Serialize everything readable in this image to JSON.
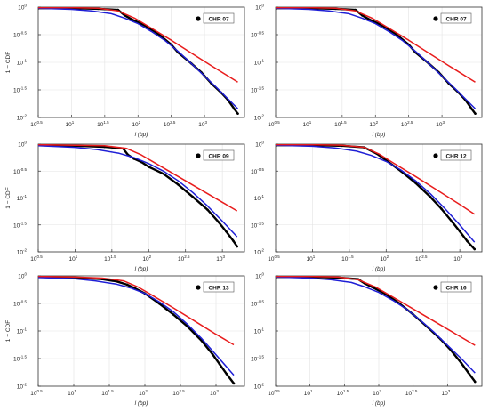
{
  "chart_data": [
    {
      "type": "line",
      "scale": "log-log",
      "ylabel": "1 − CDF",
      "xlabel": "l (bp)",
      "xlim": [
        0.5,
        3.6
      ],
      "ylim": [
        -2.0,
        0.0
      ],
      "grid": true,
      "legend_position": "top-right",
      "x_ticks": [
        {
          "v": 0.5,
          "label": "10",
          "exp": "0.5"
        },
        {
          "v": 1,
          "label": "10",
          "exp": "1"
        },
        {
          "v": 1.5,
          "label": "10",
          "exp": "1.5"
        },
        {
          "v": 2,
          "label": "10",
          "exp": "2"
        },
        {
          "v": 2.5,
          "label": "10",
          "exp": "2.5"
        },
        {
          "v": 3,
          "label": "10",
          "exp": "3"
        }
      ],
      "y_ticks": [
        {
          "v": 0,
          "label": "10",
          "exp": "0"
        },
        {
          "v": -0.5,
          "label": "10",
          "exp": "-0.5"
        },
        {
          "v": -1,
          "label": "10",
          "exp": "-1"
        },
        {
          "v": -1.5,
          "label": "10",
          "exp": "-1.5"
        },
        {
          "v": -2,
          "label": "10",
          "exp": "-2"
        }
      ],
      "series": [
        {
          "name": "CHR 07",
          "color": "#000000",
          "style": "markers",
          "x": [
            0.5,
            1.0,
            1.4,
            1.7,
            1.8,
            1.9,
            2.1,
            2.3,
            2.5,
            2.6,
            2.8,
            2.95,
            3.1,
            3.25,
            3.35,
            3.45,
            3.5
          ],
          "y": [
            -0.02,
            -0.02,
            -0.03,
            -0.05,
            -0.15,
            -0.22,
            -0.33,
            -0.48,
            -0.68,
            -0.82,
            -1.02,
            -1.18,
            -1.38,
            -1.55,
            -1.68,
            -1.85,
            -1.93
          ]
        },
        {
          "name": "",
          "color": "#1f1fd6",
          "style": "line",
          "x": [
            0.5,
            1.0,
            1.3,
            1.6,
            1.8,
            2.0,
            2.2,
            2.4,
            2.6,
            2.8,
            3.0,
            3.2,
            3.4,
            3.5
          ],
          "y": [
            -0.02,
            -0.04,
            -0.07,
            -0.12,
            -0.2,
            -0.3,
            -0.44,
            -0.6,
            -0.8,
            -1.02,
            -1.25,
            -1.48,
            -1.72,
            -1.84
          ]
        },
        {
          "name": "",
          "color": "#e81c1c",
          "style": "line",
          "x": [
            0.5,
            1.0,
            1.4,
            1.7,
            1.95,
            2.2,
            2.5,
            2.8,
            3.1,
            3.5
          ],
          "y": [
            -0.01,
            -0.01,
            -0.02,
            -0.07,
            -0.2,
            -0.38,
            -0.6,
            -0.83,
            -1.06,
            -1.36
          ]
        }
      ]
    },
    {
      "type": "line",
      "scale": "log-log",
      "ylabel": "",
      "xlabel": "l (bp)",
      "xlim": [
        0.5,
        3.6
      ],
      "ylim": [
        -2.0,
        0.0
      ],
      "grid": true,
      "legend_position": "top-right",
      "x_ticks": [
        {
          "v": 0.5,
          "label": "10",
          "exp": "0.5"
        },
        {
          "v": 1,
          "label": "10",
          "exp": "1"
        },
        {
          "v": 1.5,
          "label": "10",
          "exp": "1.5"
        },
        {
          "v": 2,
          "label": "10",
          "exp": "2"
        },
        {
          "v": 2.5,
          "label": "10",
          "exp": "2.5"
        },
        {
          "v": 3,
          "label": "10",
          "exp": "3"
        }
      ],
      "y_ticks": [
        {
          "v": 0,
          "label": "10",
          "exp": "0"
        },
        {
          "v": -0.5,
          "label": "10",
          "exp": "-0.5"
        },
        {
          "v": -1,
          "label": "10",
          "exp": "-1"
        },
        {
          "v": -1.5,
          "label": "10",
          "exp": "-1.5"
        },
        {
          "v": -2,
          "label": "10",
          "exp": "-2"
        }
      ],
      "series": [
        {
          "name": "CHR 07",
          "color": "#000000",
          "style": "markers",
          "x": [
            0.5,
            1.0,
            1.4,
            1.7,
            1.8,
            1.9,
            2.1,
            2.3,
            2.5,
            2.6,
            2.8,
            2.95,
            3.1,
            3.25,
            3.35,
            3.45,
            3.5
          ],
          "y": [
            -0.02,
            -0.02,
            -0.03,
            -0.05,
            -0.15,
            -0.22,
            -0.33,
            -0.48,
            -0.68,
            -0.82,
            -1.02,
            -1.18,
            -1.38,
            -1.55,
            -1.68,
            -1.85,
            -1.93
          ]
        },
        {
          "name": "",
          "color": "#1f1fd6",
          "style": "line",
          "x": [
            0.5,
            1.0,
            1.3,
            1.6,
            1.8,
            2.0,
            2.2,
            2.4,
            2.6,
            2.8,
            3.0,
            3.2,
            3.4,
            3.5
          ],
          "y": [
            -0.02,
            -0.04,
            -0.07,
            -0.12,
            -0.2,
            -0.3,
            -0.44,
            -0.6,
            -0.8,
            -1.02,
            -1.25,
            -1.48,
            -1.72,
            -1.84
          ]
        },
        {
          "name": "",
          "color": "#e81c1c",
          "style": "line",
          "x": [
            0.5,
            1.0,
            1.4,
            1.7,
            1.95,
            2.2,
            2.5,
            2.8,
            3.1,
            3.5
          ],
          "y": [
            -0.01,
            -0.01,
            -0.02,
            -0.07,
            -0.2,
            -0.38,
            -0.6,
            -0.83,
            -1.06,
            -1.36
          ]
        }
      ]
    },
    {
      "type": "line",
      "scale": "log-log",
      "ylabel": "1 − CDF",
      "xlabel": "l (bp)",
      "xlim": [
        0.5,
        3.3
      ],
      "ylim": [
        -2.0,
        0.0
      ],
      "grid": true,
      "legend_position": "top-right",
      "x_ticks": [
        {
          "v": 0.5,
          "label": "10",
          "exp": "0.5"
        },
        {
          "v": 1,
          "label": "10",
          "exp": "1"
        },
        {
          "v": 1.5,
          "label": "10",
          "exp": "1.5"
        },
        {
          "v": 2,
          "label": "10",
          "exp": "2"
        },
        {
          "v": 2.5,
          "label": "10",
          "exp": "2.5"
        },
        {
          "v": 3,
          "label": "10",
          "exp": "3"
        }
      ],
      "y_ticks": [
        {
          "v": 0,
          "label": "10",
          "exp": "0"
        },
        {
          "v": -0.5,
          "label": "10",
          "exp": "-0.5"
        },
        {
          "v": -1,
          "label": "10",
          "exp": "-1"
        },
        {
          "v": -1.5,
          "label": "10",
          "exp": "-1.5"
        },
        {
          "v": -2,
          "label": "10",
          "exp": "-2"
        }
      ],
      "series": [
        {
          "name": "CHR 09",
          "color": "#000000",
          "style": "markers",
          "x": [
            0.5,
            1.0,
            1.4,
            1.65,
            1.72,
            1.8,
            1.9,
            2.0,
            2.2,
            2.4,
            2.6,
            2.8,
            2.95,
            3.05,
            3.15,
            3.2
          ],
          "y": [
            -0.02,
            -0.03,
            -0.05,
            -0.08,
            -0.2,
            -0.27,
            -0.33,
            -0.42,
            -0.55,
            -0.75,
            -0.98,
            -1.22,
            -1.45,
            -1.62,
            -1.8,
            -1.9
          ]
        },
        {
          "name": "",
          "color": "#1f1fd6",
          "style": "line",
          "x": [
            0.5,
            1.0,
            1.3,
            1.6,
            1.8,
            2.0,
            2.2,
            2.4,
            2.6,
            2.8,
            3.0,
            3.2
          ],
          "y": [
            -0.03,
            -0.06,
            -0.1,
            -0.17,
            -0.25,
            -0.36,
            -0.5,
            -0.68,
            -0.9,
            -1.15,
            -1.43,
            -1.72
          ]
        },
        {
          "name": "",
          "color": "#e81c1c",
          "style": "line",
          "x": [
            0.5,
            1.0,
            1.4,
            1.7,
            1.9,
            2.1,
            2.4,
            2.7,
            3.0,
            3.2
          ],
          "y": [
            -0.01,
            -0.02,
            -0.03,
            -0.08,
            -0.2,
            -0.36,
            -0.6,
            -0.84,
            -1.08,
            -1.24
          ]
        }
      ]
    },
    {
      "type": "line",
      "scale": "log-log",
      "ylabel": "",
      "xlabel": "l (bp)",
      "xlim": [
        0.5,
        3.3
      ],
      "ylim": [
        -2.0,
        0.0
      ],
      "grid": true,
      "legend_position": "top-right",
      "x_ticks": [
        {
          "v": 0.5,
          "label": "10",
          "exp": "0.5"
        },
        {
          "v": 1,
          "label": "10",
          "exp": "1"
        },
        {
          "v": 1.5,
          "label": "10",
          "exp": "1.5"
        },
        {
          "v": 2,
          "label": "10",
          "exp": "2"
        },
        {
          "v": 2.5,
          "label": "10",
          "exp": "2.5"
        },
        {
          "v": 3,
          "label": "10",
          "exp": "3"
        }
      ],
      "y_ticks": [
        {
          "v": 0,
          "label": "10",
          "exp": "0"
        },
        {
          "v": -0.5,
          "label": "10",
          "exp": "-0.5"
        },
        {
          "v": -1,
          "label": "10",
          "exp": "-1"
        },
        {
          "v": -1.5,
          "label": "10",
          "exp": "-1.5"
        },
        {
          "v": -2,
          "label": "10",
          "exp": "-2"
        }
      ],
      "series": [
        {
          "name": "CHR 12",
          "color": "#000000",
          "style": "markers",
          "x": [
            0.5,
            1.0,
            1.4,
            1.7,
            1.82,
            1.9,
            2.0,
            2.2,
            2.4,
            2.6,
            2.75,
            2.9,
            3.0,
            3.1,
            3.2
          ],
          "y": [
            -0.02,
            -0.02,
            -0.03,
            -0.06,
            -0.14,
            -0.2,
            -0.3,
            -0.5,
            -0.72,
            -0.98,
            -1.2,
            -1.45,
            -1.62,
            -1.8,
            -1.95
          ]
        },
        {
          "name": "",
          "color": "#1f1fd6",
          "style": "line",
          "x": [
            0.5,
            1.0,
            1.3,
            1.6,
            1.8,
            2.0,
            2.2,
            2.4,
            2.6,
            2.8,
            3.0,
            3.2
          ],
          "y": [
            -0.02,
            -0.04,
            -0.07,
            -0.13,
            -0.21,
            -0.32,
            -0.48,
            -0.68,
            -0.92,
            -1.2,
            -1.5,
            -1.82
          ]
        },
        {
          "name": "",
          "color": "#e81c1c",
          "style": "line",
          "x": [
            0.5,
            1.0,
            1.4,
            1.7,
            1.9,
            2.1,
            2.4,
            2.7,
            3.0,
            3.2
          ],
          "y": [
            -0.01,
            -0.01,
            -0.02,
            -0.06,
            -0.18,
            -0.35,
            -0.6,
            -0.86,
            -1.12,
            -1.3
          ]
        }
      ]
    },
    {
      "type": "line",
      "scale": "log-log",
      "ylabel": "1 − CDF",
      "xlabel": "l (bp)",
      "xlim": [
        0.5,
        3.4
      ],
      "ylim": [
        -2.0,
        0.0
      ],
      "grid": true,
      "legend_position": "top-right",
      "x_ticks": [
        {
          "v": 0.5,
          "label": "10",
          "exp": "0.5"
        },
        {
          "v": 1,
          "label": "10",
          "exp": "1"
        },
        {
          "v": 1.5,
          "label": "10",
          "exp": "1.5"
        },
        {
          "v": 2,
          "label": "10",
          "exp": "2"
        },
        {
          "v": 2.5,
          "label": "10",
          "exp": "2.5"
        },
        {
          "v": 3,
          "label": "10",
          "exp": "3"
        }
      ],
      "y_ticks": [
        {
          "v": 0,
          "label": "10",
          "exp": "0"
        },
        {
          "v": -0.5,
          "label": "10",
          "exp": "-0.5"
        },
        {
          "v": -1,
          "label": "10",
          "exp": "-1"
        },
        {
          "v": -1.5,
          "label": "10",
          "exp": "-1.5"
        },
        {
          "v": -2,
          "label": "10",
          "exp": "-2"
        }
      ],
      "series": [
        {
          "name": "CHR 13",
          "color": "#000000",
          "style": "markers",
          "x": [
            0.5,
            1.0,
            1.4,
            1.6,
            1.75,
            1.85,
            2.0,
            2.2,
            2.4,
            2.6,
            2.8,
            2.95,
            3.05,
            3.15,
            3.25
          ],
          "y": [
            -0.02,
            -0.03,
            -0.06,
            -0.1,
            -0.16,
            -0.22,
            -0.32,
            -0.5,
            -0.7,
            -0.92,
            -1.18,
            -1.42,
            -1.6,
            -1.78,
            -1.95
          ]
        },
        {
          "name": "",
          "color": "#1f1fd6",
          "style": "line",
          "x": [
            0.5,
            1.0,
            1.3,
            1.6,
            1.8,
            2.0,
            2.2,
            2.4,
            2.6,
            2.8,
            3.0,
            3.25
          ],
          "y": [
            -0.03,
            -0.05,
            -0.09,
            -0.15,
            -0.22,
            -0.32,
            -0.47,
            -0.65,
            -0.88,
            -1.14,
            -1.43,
            -1.8
          ]
        },
        {
          "name": "",
          "color": "#e81c1c",
          "style": "line",
          "x": [
            0.5,
            1.0,
            1.4,
            1.7,
            1.9,
            2.1,
            2.4,
            2.7,
            3.0,
            3.25
          ],
          "y": [
            -0.01,
            -0.02,
            -0.04,
            -0.09,
            -0.2,
            -0.35,
            -0.58,
            -0.82,
            -1.06,
            -1.25
          ]
        }
      ]
    },
    {
      "type": "line",
      "scale": "log-log",
      "ylabel": "",
      "xlabel": "l (bp)",
      "xlim": [
        0.5,
        3.5
      ],
      "ylim": [
        -2.0,
        0.0
      ],
      "grid": true,
      "legend_position": "top-right",
      "x_ticks": [
        {
          "v": 0.5,
          "label": "10",
          "exp": "0.5"
        },
        {
          "v": 1,
          "label": "10",
          "exp": "1"
        },
        {
          "v": 1.5,
          "label": "10",
          "exp": "1.5"
        },
        {
          "v": 2,
          "label": "10",
          "exp": "2"
        },
        {
          "v": 2.5,
          "label": "10",
          "exp": "2.5"
        },
        {
          "v": 3,
          "label": "10",
          "exp": "3"
        }
      ],
      "y_ticks": [
        {
          "v": 0,
          "label": "10",
          "exp": "0"
        },
        {
          "v": -0.5,
          "label": "10",
          "exp": "-0.5"
        },
        {
          "v": -1,
          "label": "10",
          "exp": "-1"
        },
        {
          "v": -1.5,
          "label": "10",
          "exp": "-1.5"
        },
        {
          "v": -2,
          "label": "10",
          "exp": "-2"
        }
      ],
      "series": [
        {
          "name": "CHR 16",
          "color": "#000000",
          "style": "markers",
          "x": [
            0.5,
            1.0,
            1.4,
            1.7,
            1.8,
            1.9,
            2.1,
            2.3,
            2.5,
            2.7,
            2.9,
            3.05,
            3.2,
            3.3,
            3.4
          ],
          "y": [
            -0.02,
            -0.02,
            -0.03,
            -0.06,
            -0.14,
            -0.2,
            -0.33,
            -0.5,
            -0.7,
            -0.92,
            -1.15,
            -1.35,
            -1.58,
            -1.75,
            -1.92
          ]
        },
        {
          "name": "",
          "color": "#1f1fd6",
          "style": "line",
          "x": [
            0.5,
            1.0,
            1.3,
            1.6,
            1.8,
            2.0,
            2.2,
            2.4,
            2.6,
            2.8,
            3.0,
            3.2,
            3.4
          ],
          "y": [
            -0.02,
            -0.04,
            -0.07,
            -0.12,
            -0.2,
            -0.3,
            -0.44,
            -0.6,
            -0.8,
            -1.02,
            -1.26,
            -1.5,
            -1.76
          ]
        },
        {
          "name": "",
          "color": "#e81c1c",
          "style": "line",
          "x": [
            0.5,
            1.0,
            1.4,
            1.7,
            1.95,
            2.2,
            2.5,
            2.8,
            3.1,
            3.4
          ],
          "y": [
            -0.01,
            -0.01,
            -0.02,
            -0.07,
            -0.2,
            -0.38,
            -0.6,
            -0.82,
            -1.04,
            -1.26
          ]
        }
      ]
    }
  ]
}
